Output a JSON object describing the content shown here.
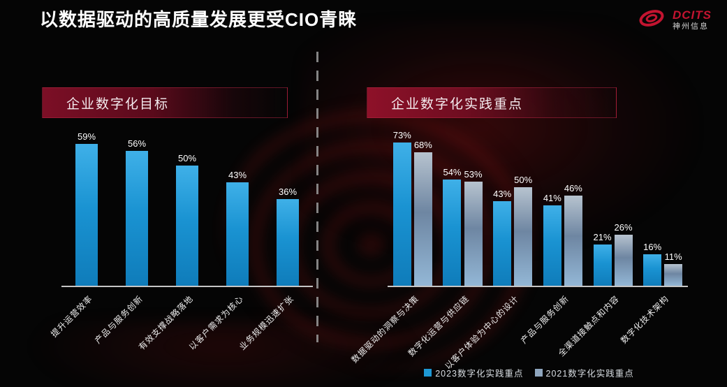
{
  "title": "以数据驱动的高质量发展更受CIO青睐",
  "logo": {
    "brand": "DCITS",
    "company": "神州信息"
  },
  "panels": {
    "left": {
      "header": "企业数字化目标"
    },
    "right": {
      "header": "企业数字化实践重点"
    }
  },
  "legend": {
    "items": [
      {
        "label": "2023数字化实践重点",
        "color": "#1e98d4"
      },
      {
        "label": "2021数字化实践重点",
        "color": "#8fa6be"
      }
    ],
    "position": "bottom-center"
  },
  "colors": {
    "background": "#050505",
    "bar_2023": "#1b93d2",
    "bar_2021": "#8fa6be",
    "brand_red": "#c31430",
    "header_red": "#7c0f26",
    "axis_gray": "#c6c6c6"
  },
  "chart_data": [
    {
      "type": "bar",
      "title": "企业数字化目标",
      "categories": [
        "提升运营效率",
        "产品与服务创新",
        "有效支撑战略落地",
        "以客户需求为核心",
        "业务规模迅速扩张"
      ],
      "values": [
        59,
        56,
        50,
        43,
        36
      ],
      "unit": "%",
      "value_labels": [
        "59%",
        "56%",
        "50%",
        "43%",
        "36%"
      ],
      "ylim": [
        0,
        100
      ],
      "grid": false
    },
    {
      "type": "bar",
      "title": "企业数字化实践重点",
      "categories": [
        "数据驱动的洞察与决策",
        "数字化运营与供应链",
        "以客户体验为中心的设计",
        "产品与服务创新",
        "全渠道接触点和内容",
        "数字化技术架构"
      ],
      "series": [
        {
          "name": "2023数字化实践重点",
          "key": "2023",
          "values": [
            73,
            54,
            43,
            41,
            21,
            16
          ]
        },
        {
          "name": "2021数字化实践重点",
          "key": "2021",
          "values": [
            68,
            53,
            50,
            46,
            26,
            11
          ]
        }
      ],
      "unit": "%",
      "ylim": [
        0,
        100
      ],
      "grid": false,
      "legend_position": "bottom"
    }
  ]
}
